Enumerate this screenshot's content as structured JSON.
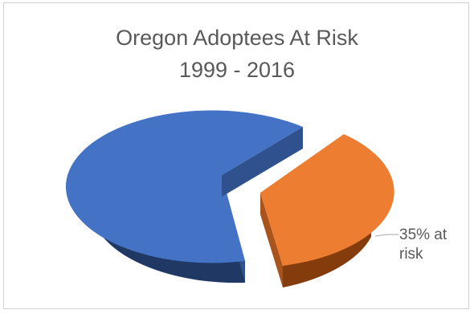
{
  "chart_data": {
    "type": "pie",
    "title_lines": [
      "Oregon Adoptees At Risk",
      "1999 - 2016"
    ],
    "style": "3d-exploded",
    "slices": [
      {
        "value": 65,
        "color": "#4472c4",
        "side_color": "#203864",
        "label_lines": []
      },
      {
        "value": 35,
        "color": "#ed7d31",
        "side_color": "#843c0c",
        "label_lines": [
          "35% at",
          "risk"
        ]
      }
    ],
    "legend": "none"
  }
}
